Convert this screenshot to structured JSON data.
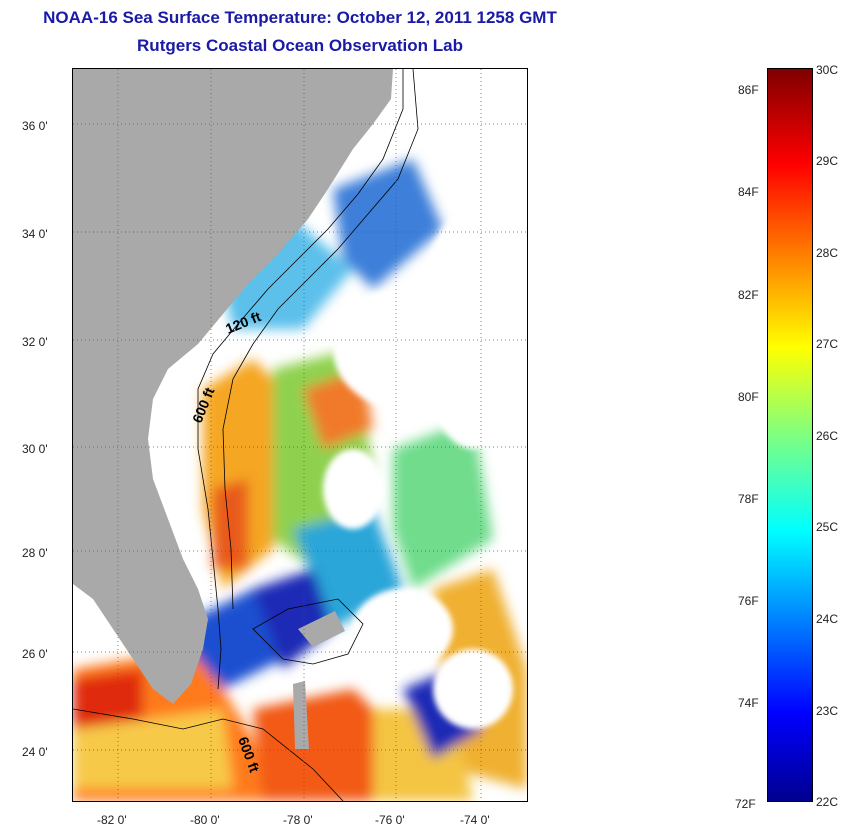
{
  "title": "NOAA-16 Sea Surface Temperature:  October 12, 2011 1258 GMT",
  "subtitle": "Rutgers Coastal Ocean Observation Lab",
  "map": {
    "lat_ticks": [
      "36 0'",
      "34 0'",
      "32 0'",
      "30 0'",
      "28 0'",
      "26 0'",
      "24 0'"
    ],
    "lon_ticks": [
      "-82 0'",
      "-80 0'",
      "-78 0'",
      "-76 0'",
      "-74 0'"
    ],
    "isobaths": [
      "120 ft",
      "600 ft",
      "600 ft"
    ],
    "colors": {
      "land": "#a9a9a9",
      "cloud": "#ffffff"
    }
  },
  "colorbar": {
    "fahrenheit_labels": [
      "86F",
      "84F",
      "82F",
      "80F",
      "78F",
      "76F",
      "74F",
      "72F"
    ],
    "celsius_labels": [
      "30C",
      "29C",
      "28C",
      "27C",
      "26C",
      "25C",
      "24C",
      "23C",
      "22C"
    ],
    "colormap": "jet"
  }
}
